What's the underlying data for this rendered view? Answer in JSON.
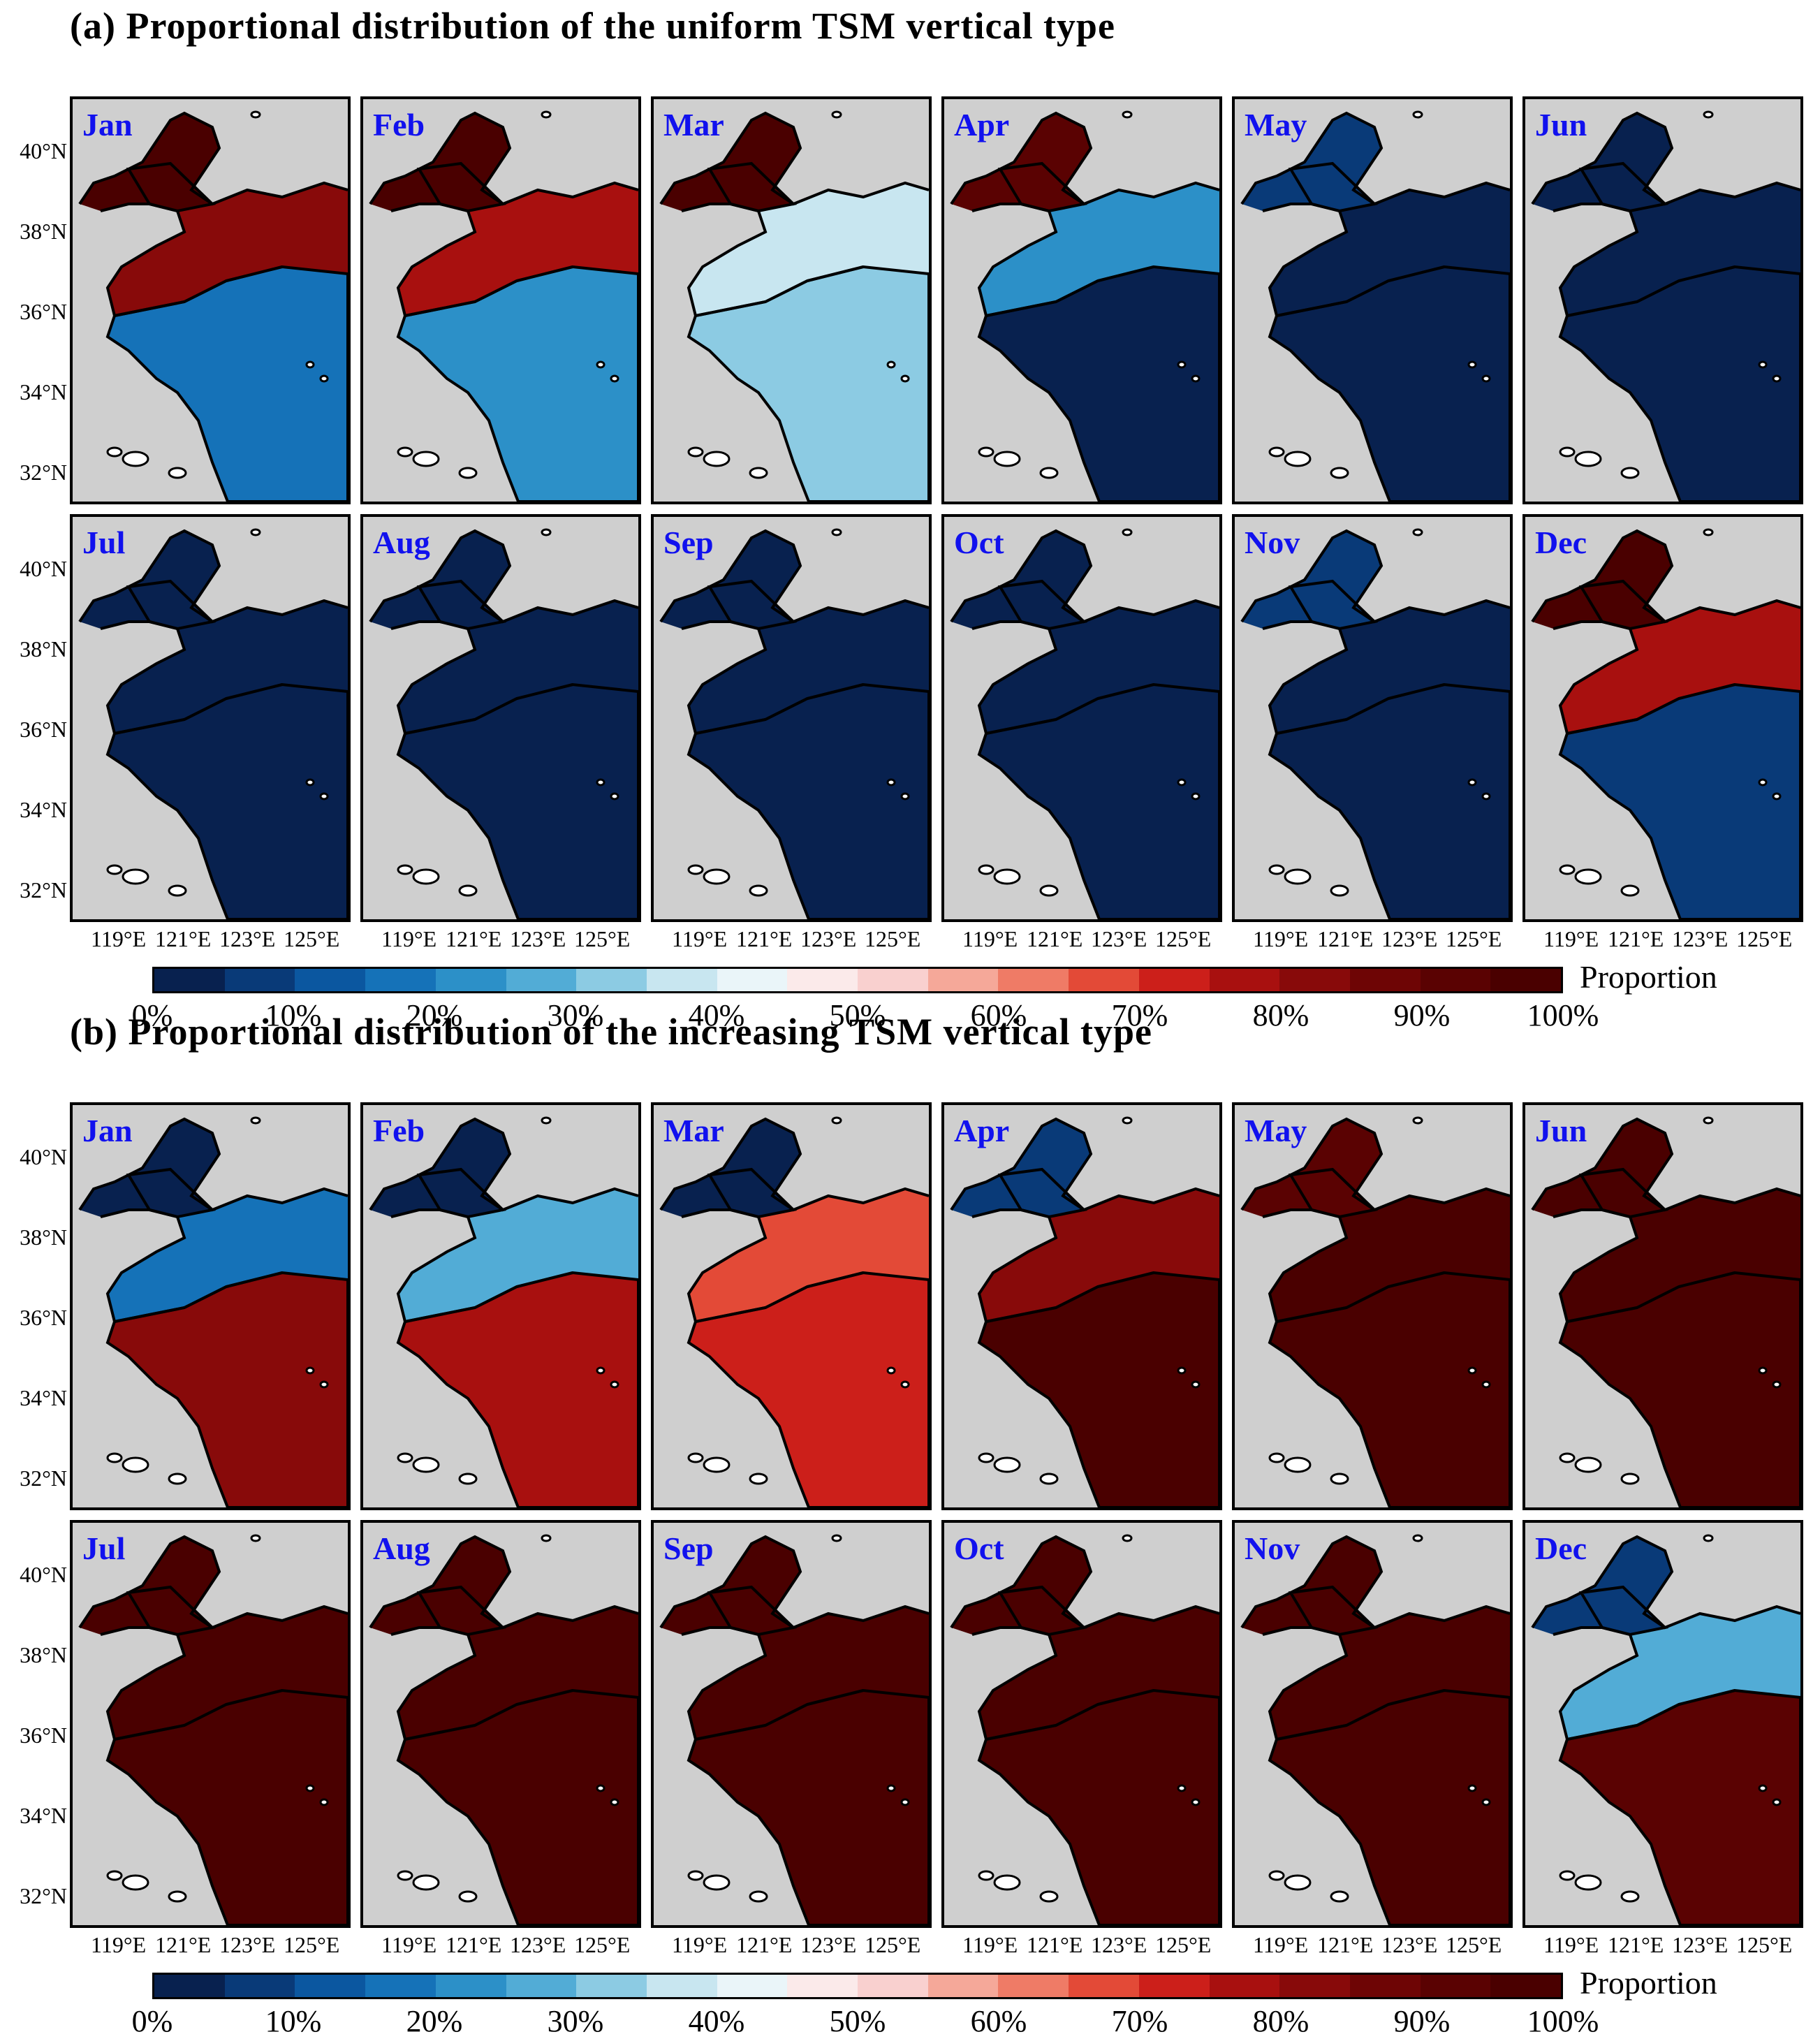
{
  "sections": [
    {
      "id": "a",
      "title": "(a) Proportional distribution of the uniform TSM vertical  type",
      "months": [
        {
          "label": "Jan",
          "bohai": 100,
          "north": 82,
          "south": 18
        },
        {
          "label": "Feb",
          "bohai": 100,
          "north": 75,
          "south": 22
        },
        {
          "label": "Mar",
          "bohai": 100,
          "north": 35,
          "south": 30
        },
        {
          "label": "Apr",
          "bohai": 92,
          "north": 20,
          "south": 3
        },
        {
          "label": "May",
          "bohai": 8,
          "north": 2,
          "south": 0
        },
        {
          "label": "Jun",
          "bohai": 1,
          "north": 0,
          "south": 0
        },
        {
          "label": "Jul",
          "bohai": 0,
          "north": 0,
          "south": 0
        },
        {
          "label": "Aug",
          "bohai": 0,
          "north": 0,
          "south": 0
        },
        {
          "label": "Sep",
          "bohai": 0,
          "north": 0,
          "south": 0
        },
        {
          "label": "Oct",
          "bohai": 0,
          "north": 0,
          "south": 0
        },
        {
          "label": "Nov",
          "bohai": 5,
          "north": 0,
          "south": 0
        },
        {
          "label": "Dec",
          "bohai": 95,
          "north": 75,
          "south": 8
        }
      ]
    },
    {
      "id": "b",
      "title": "(b) Proportional distribution of the increasing TSM vertical  type",
      "months": [
        {
          "label": "Jan",
          "bohai": 0,
          "north": 18,
          "south": 82
        },
        {
          "label": "Feb",
          "bohai": 0,
          "north": 25,
          "south": 78
        },
        {
          "label": "Mar",
          "bohai": 0,
          "north": 65,
          "south": 70
        },
        {
          "label": "Apr",
          "bohai": 8,
          "north": 80,
          "south": 97
        },
        {
          "label": "May",
          "bohai": 92,
          "north": 98,
          "south": 100
        },
        {
          "label": "Jun",
          "bohai": 99,
          "north": 100,
          "south": 100
        },
        {
          "label": "Jul",
          "bohai": 100,
          "north": 100,
          "south": 100
        },
        {
          "label": "Aug",
          "bohai": 100,
          "north": 100,
          "south": 100
        },
        {
          "label": "Sep",
          "bohai": 100,
          "north": 100,
          "south": 100
        },
        {
          "label": "Oct",
          "bohai": 100,
          "north": 100,
          "south": 100
        },
        {
          "label": "Nov",
          "bohai": 95,
          "north": 100,
          "south": 100
        },
        {
          "label": "Dec",
          "bohai": 5,
          "north": 25,
          "south": 92
        }
      ]
    }
  ],
  "lat_labels": [
    "40°N",
    "38°N",
    "36°N",
    "34°N",
    "32°N"
  ],
  "lon_labels": [
    "119°E",
    "121°E",
    "123°E",
    "125°E"
  ],
  "colorbar": {
    "label": "Proportion",
    "ticks": [
      "0%",
      "10%",
      "20%",
      "30%",
      "40%",
      "50%",
      "60%",
      "70%",
      "80%",
      "90%",
      "100%"
    ],
    "colors": [
      "#08214f",
      "#093a78",
      "#0b57a0",
      "#1572b8",
      "#2c90c8",
      "#52acd6",
      "#8ccbe3",
      "#c8e6f0",
      "#eaf5f9",
      "#fbeaea",
      "#f9d0cf",
      "#f5a899",
      "#ef7b66",
      "#e34a37",
      "#cc1f1a",
      "#a8100f",
      "#880a0a",
      "#6e0505",
      "#5a0202",
      "#4a0000"
    ]
  }
}
